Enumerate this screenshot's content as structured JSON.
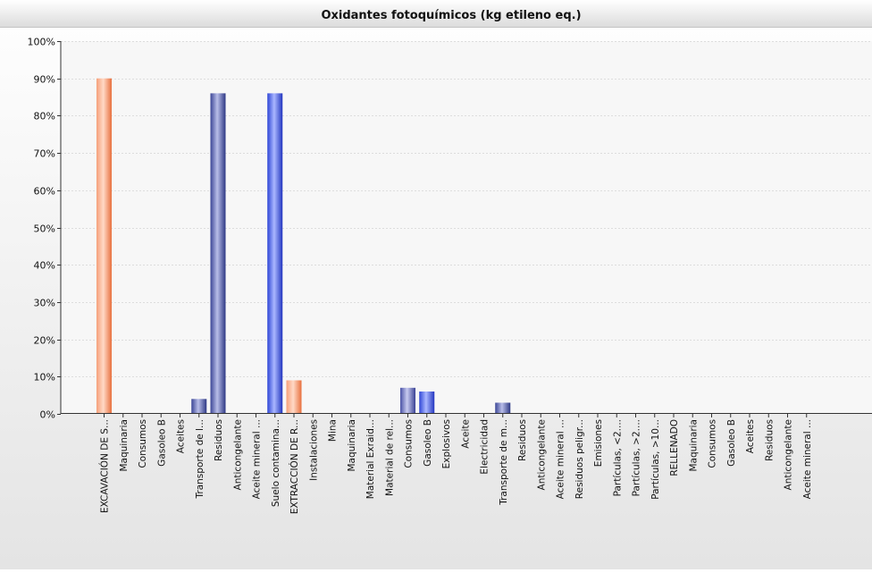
{
  "chart_data": {
    "type": "bar",
    "title": "Oxidantes fotoquímicos (kg etileno eq.)",
    "xlabel": "",
    "ylabel": "",
    "ylim": [
      0,
      100
    ],
    "y_ticks": [
      0,
      10,
      20,
      30,
      40,
      50,
      60,
      70,
      80,
      90,
      100
    ],
    "y_tick_suffix": "%",
    "grid": true,
    "legend": "none",
    "colors": {
      "orange": "#f08a5d",
      "navy": "#5a62a8",
      "blue": "#4a5fe0",
      "indigo": "#6870b8"
    },
    "categories": [
      "EXCAVACIÓN DE S...",
      "Maquinaria",
      "Consumos",
      "Gasoleo B",
      "Aceites",
      "Transporte de l...",
      "Residuos",
      "Anticongelante",
      "Aceite mineral ...",
      "Suelo contamina...",
      "EXTRACCIÓN DE R...",
      "Instalaciones",
      "Mina",
      "Maquinaria",
      "Material Exraid...",
      "Material de rel...",
      "Consumos",
      "Gasoleo B",
      "Explosivos",
      "Aceite",
      "Electricidad",
      "Transporte de m...",
      "Residuos",
      "Anticongelante",
      "Aceite mineral ...",
      "Residuos peligr...",
      "Emisiones",
      "Partículas, <2....",
      "Partículas, >2....",
      "Partículas, >10...",
      "RELLENADO",
      "Maquinaria",
      "Consumos",
      "Gasoleo B",
      "Aceites",
      "Residuos",
      "Anticongelante",
      "Aceite mineral ..."
    ],
    "values": [
      90,
      0,
      0,
      0,
      0,
      4,
      86,
      0,
      0,
      86,
      9,
      0,
      0,
      0,
      0,
      0,
      7,
      6,
      0,
      0,
      0,
      3,
      0,
      0,
      0,
      0,
      0,
      0,
      0,
      0,
      0,
      0,
      0,
      0,
      0,
      0,
      0,
      0
    ],
    "bar_colors": [
      "orange",
      "navy",
      "navy",
      "navy",
      "navy",
      "navy",
      "navy",
      "navy",
      "navy",
      "blue",
      "orange",
      "navy",
      "navy",
      "navy",
      "navy",
      "navy",
      "indigo",
      "blue",
      "navy",
      "navy",
      "navy",
      "navy",
      "navy",
      "navy",
      "navy",
      "navy",
      "navy",
      "navy",
      "navy",
      "navy",
      "orange",
      "navy",
      "navy",
      "navy",
      "navy",
      "navy",
      "navy",
      "navy"
    ]
  }
}
